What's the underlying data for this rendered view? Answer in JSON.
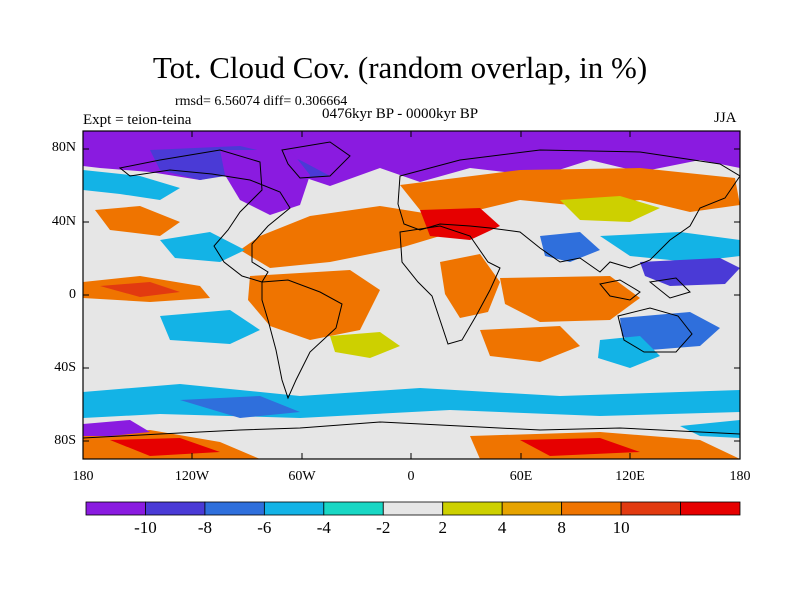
{
  "header": {
    "title": "Tot. Cloud Cov. (random overlap, in %)",
    "stats": "rmsd= 6.56074 diff= 0.306664",
    "experiment": "Expt = teion-teina",
    "period": "0476kyr BP - 0000kyr BP",
    "season": "JJA"
  },
  "axes": {
    "lat_labels": [
      "80N",
      "40N",
      "0",
      "40S",
      "80S"
    ],
    "lon_labels": [
      "180",
      "120W",
      "60W",
      "0",
      "60E",
      "120E",
      "180"
    ]
  },
  "colorbar": {
    "labels": [
      "-10",
      "-8",
      "-6",
      "-4",
      "-2",
      "2",
      "4",
      "8",
      "10"
    ],
    "colors": [
      "#8a1be0",
      "#4a3ad6",
      "#2f6fdc",
      "#13b3e6",
      "#19d7c4",
      "#e6e6e6",
      "#cdd000",
      "#e6a300",
      "#ef7400",
      "#e23a10",
      "#e60000"
    ]
  },
  "palette": {
    "frame": "#000000",
    "coast": "#000000",
    "neutral": "#e6e6e6"
  }
}
